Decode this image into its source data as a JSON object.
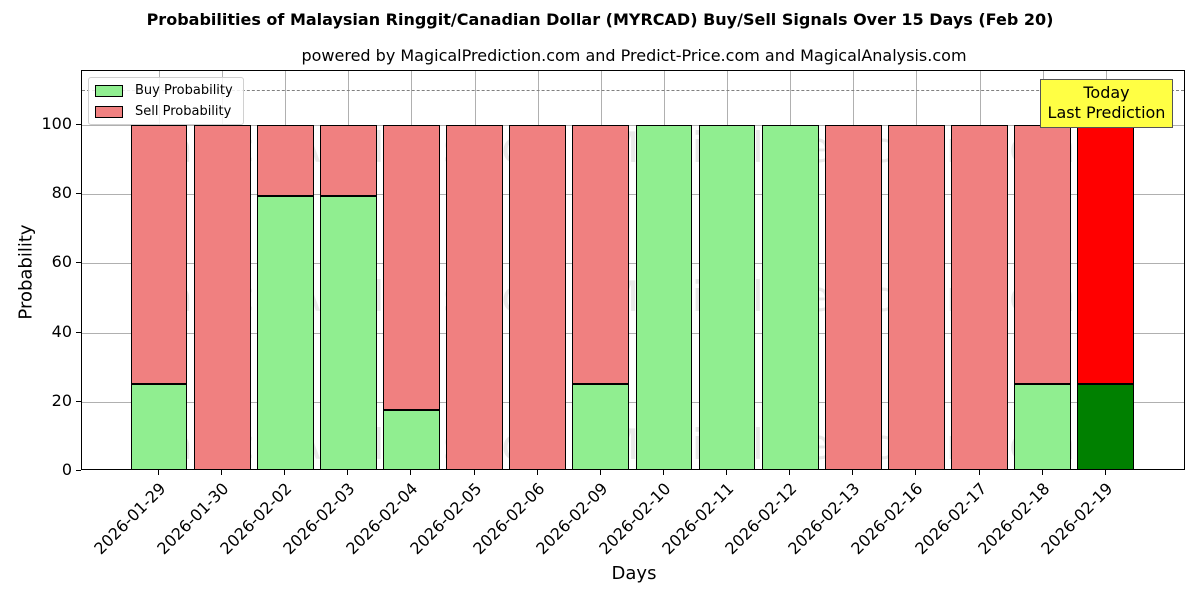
{
  "title": "Probabilities of Malaysian Ringgit/Canadian Dollar (MYRCAD) Buy/Sell Signals Over 15 Days (Feb 20)",
  "subtitle": "powered by MagicalPrediction.com and Predict-Price.com and MagicalAnalysis.com",
  "legend": {
    "buy_label": "Buy Probability",
    "sell_label": "Sell Probability"
  },
  "annotation": {
    "line1": "Today",
    "line2": "Last Prediction"
  },
  "watermarks": [
    "MagicalAnalysis.com",
    "MagicalPrediction.com"
  ],
  "colors": {
    "buy": "#90ee90",
    "sell": "#f08080",
    "buy_today": "#008000",
    "sell_today": "#ff0000",
    "annotation_bg": "#ffff44"
  },
  "chart_data": {
    "type": "bar",
    "stacked": true,
    "title": "Probabilities of Malaysian Ringgit/Canadian Dollar (MYRCAD) Buy/Sell Signals Over 15 Days (Feb 20)",
    "subtitle": "powered by MagicalPrediction.com and Predict-Price.com and MagicalAnalysis.com",
    "xlabel": "Days",
    "ylabel": "Probability",
    "ylim": [
      0,
      115.6
    ],
    "yticks": [
      0,
      20,
      40,
      60,
      80,
      100
    ],
    "grid": true,
    "legend_position": "upper left",
    "reference_line": {
      "y": 110,
      "style": "dashed",
      "color": "#808080"
    },
    "categories": [
      "2026-01-29",
      "2026-01-30",
      "2026-02-02",
      "2026-02-03",
      "2026-02-04",
      "2026-02-05",
      "2026-02-06",
      "2026-02-09",
      "2026-02-10",
      "2026-02-11",
      "2026-02-12",
      "2026-02-13",
      "2026-02-16",
      "2026-02-17",
      "2026-02-18",
      "2026-02-19"
    ],
    "series": [
      {
        "name": "Buy Probability",
        "values": [
          25,
          0,
          79.4,
          79.4,
          17.5,
          0,
          0,
          25,
          100,
          100,
          100,
          0,
          0,
          0,
          25,
          25
        ]
      },
      {
        "name": "Sell Probability",
        "values": [
          75,
          100,
          20.6,
          20.6,
          82.5,
          100,
          100,
          75,
          0,
          0,
          0,
          100,
          100,
          100,
          75,
          75
        ]
      }
    ],
    "highlight": {
      "index": 15,
      "label": "Today\nLast Prediction"
    }
  }
}
